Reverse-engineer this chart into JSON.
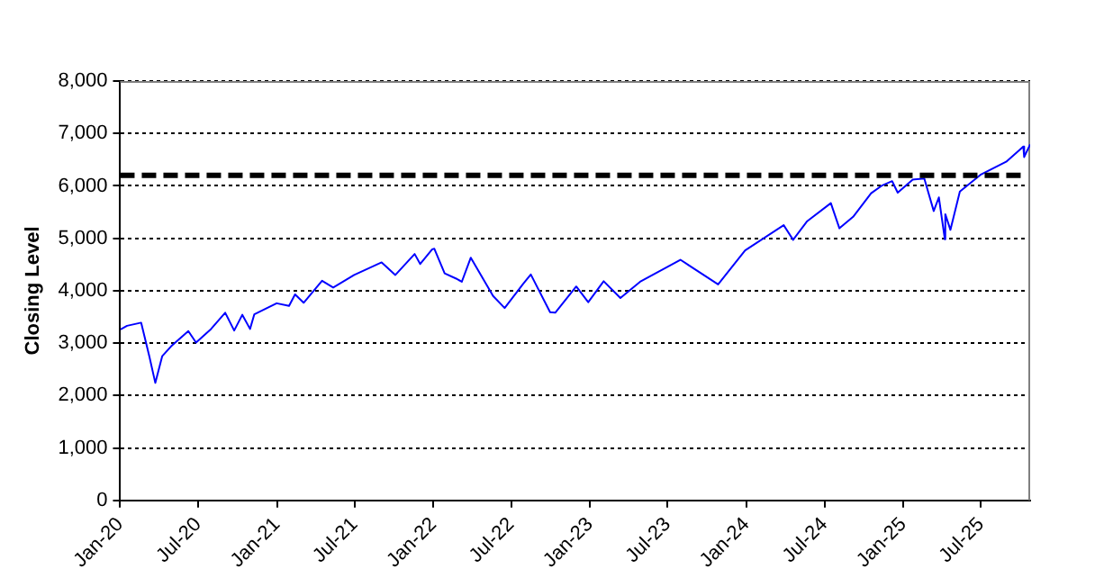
{
  "chart_data": {
    "type": "line",
    "ylabel": "Closing Level",
    "x": [
      "2020-01-02",
      "2020-01-17",
      "2020-02-19",
      "2020-03-09",
      "2020-03-23",
      "2020-04-08",
      "2020-04-29",
      "2020-06-08",
      "2020-06-26",
      "2020-07-31",
      "2020-09-02",
      "2020-09-23",
      "2020-10-12",
      "2020-10-30",
      "2020-11-09",
      "2020-12-31",
      "2021-01-29",
      "2021-02-12",
      "2021-03-04",
      "2021-04-16",
      "2021-05-12",
      "2021-06-30",
      "2021-09-02",
      "2021-10-04",
      "2021-11-18",
      "2021-12-01",
      "2021-12-29",
      "2022-01-03",
      "2022-01-27",
      "2022-02-23",
      "2022-03-08",
      "2022-03-29",
      "2022-05-20",
      "2022-06-16",
      "2022-07-29",
      "2022-08-16",
      "2022-09-30",
      "2022-10-12",
      "2022-11-30",
      "2022-12-28",
      "2023-02-02",
      "2023-03-13",
      "2023-04-28",
      "2023-06-30",
      "2023-07-31",
      "2023-10-27",
      "2023-12-29",
      "2024-03-28",
      "2024-04-19",
      "2024-05-21",
      "2024-07-16",
      "2024-08-05",
      "2024-09-06",
      "2024-10-18",
      "2024-11-11",
      "2024-12-06",
      "2024-12-19",
      "2025-01-23",
      "2025-02-19",
      "2025-03-13",
      "2025-03-25",
      "2025-04-08",
      "2025-04-09",
      "2025-04-21",
      "2025-05-13",
      "2025-06-30",
      "2025-07-31",
      "2025-08-29",
      "2025-09-30",
      "2025-10-08",
      "2025-10-10",
      "2025-10-24"
    ],
    "series": [
      {
        "color": "#0000ff",
        "values": [
          3260,
          3330,
          3390,
          2750,
          2240,
          2750,
          2940,
          3230,
          3010,
          3270,
          3580,
          3240,
          3540,
          3270,
          3550,
          3760,
          3710,
          3930,
          3770,
          4190,
          4060,
          4300,
          4540,
          4300,
          4700,
          4510,
          4790,
          4800,
          4330,
          4230,
          4170,
          4630,
          3900,
          3670,
          4130,
          4310,
          3590,
          3580,
          4080,
          3780,
          4180,
          3860,
          4170,
          4450,
          4590,
          4120,
          4770,
          5250,
          4970,
          5320,
          5670,
          5190,
          5410,
          5860,
          6000,
          6090,
          5870,
          6120,
          6140,
          5520,
          5780,
          4980,
          5460,
          5160,
          5890,
          6210,
          6340,
          6460,
          6690,
          6750,
          6550,
          6790
        ]
      }
    ],
    "xlim": [
      "2020-01-01",
      "2025-10-24"
    ],
    "xticks": [
      {
        "value": "2020-01-01",
        "label": "Jan-20"
      },
      {
        "value": "2020-07-01",
        "label": "Jul-20"
      },
      {
        "value": "2021-01-01",
        "label": "Jan-21"
      },
      {
        "value": "2021-07-01",
        "label": "Jul-21"
      },
      {
        "value": "2022-01-01",
        "label": "Jan-22"
      },
      {
        "value": "2022-07-01",
        "label": "Jul-22"
      },
      {
        "value": "2023-01-01",
        "label": "Jan-23"
      },
      {
        "value": "2023-07-01",
        "label": "Jul-23"
      },
      {
        "value": "2024-01-01",
        "label": "Jan-24"
      },
      {
        "value": "2024-07-01",
        "label": "Jul-24"
      },
      {
        "value": "2025-01-01",
        "label": "Jan-25"
      },
      {
        "value": "2025-07-01",
        "label": "Jul-25"
      }
    ],
    "ylim": [
      0,
      8000
    ],
    "yticks": [
      0,
      {
        "value": 1000,
        "label": "1,000"
      },
      {
        "value": 2000,
        "label": "2,000"
      },
      {
        "value": 3000,
        "label": "3,000"
      },
      {
        "value": 4000,
        "label": "4,000"
      },
      {
        "value": 5000,
        "label": "5,000"
      },
      {
        "value": 6000,
        "label": "6,000"
      },
      {
        "value": 7000,
        "label": "7,000"
      },
      {
        "value": 8000,
        "label": "8,000"
      }
    ],
    "ref_lines": [
      {
        "axis": "y",
        "value": 6200,
        "color": "#000000",
        "line_style": "dashed"
      }
    ],
    "grid": "y",
    "legend": false,
    "marker": "none",
    "line_style": "solid"
  }
}
